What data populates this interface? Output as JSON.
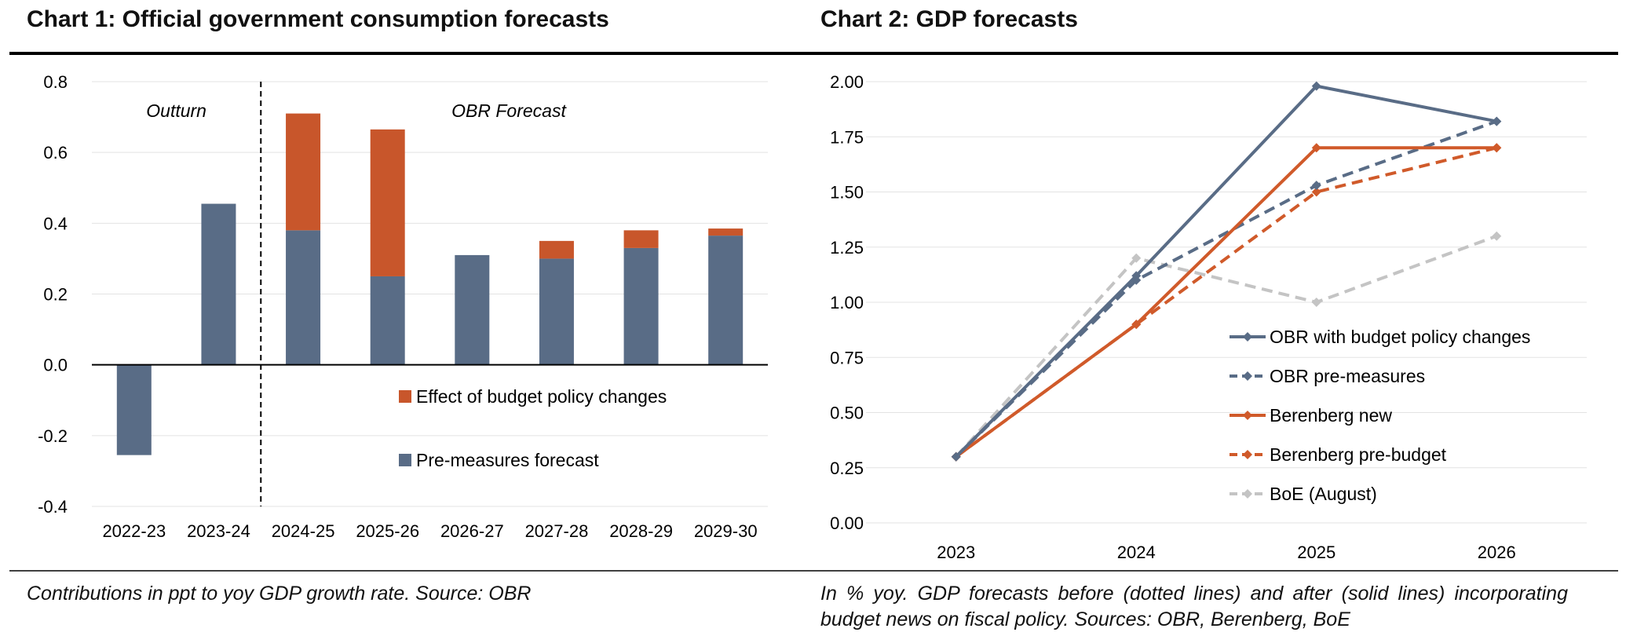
{
  "chart_data": [
    {
      "type": "bar",
      "stacked": true,
      "title": "Chart 1: Official government consumption forecasts",
      "categories": [
        "2022-23",
        "2023-24",
        "2024-25",
        "2025-26",
        "2026-27",
        "2027-28",
        "2028-29",
        "2029-30"
      ],
      "series": [
        {
          "name": "Pre-measures forecast",
          "color": "#596C86",
          "values": [
            -0.255,
            0.455,
            0.38,
            0.25,
            0.31,
            0.3,
            0.33,
            0.365
          ]
        },
        {
          "name": "Effect of budget policy changes",
          "color": "#C8562B",
          "values": [
            0,
            0,
            0.33,
            0.415,
            0,
            0.05,
            0.05,
            0.02
          ]
        }
      ],
      "ylim": [
        -0.4,
        0.8
      ],
      "yticks": [
        "-0.4",
        "-0.2",
        "0.0",
        "0.2",
        "0.4",
        "0.6",
        "0.8"
      ],
      "ytick_values": [
        -0.4,
        -0.2,
        0,
        0.2,
        0.4,
        0.6,
        0.8
      ],
      "annotations": [
        "Outturn",
        "OBR Forecast"
      ],
      "grid": true,
      "legend_position": "center-right",
      "caption": "Contributions in ppt to yoy GDP growth rate. Source: OBR"
    },
    {
      "type": "line",
      "title": "Chart 2: GDP forecasts",
      "x": [
        "2023",
        "2024",
        "2025",
        "2026"
      ],
      "ylim": [
        0,
        2
      ],
      "yticks": [
        "0.00",
        "0.25",
        "0.50",
        "0.75",
        "1.00",
        "1.25",
        "1.50",
        "1.75",
        "2.00"
      ],
      "ytick_values": [
        0,
        0.25,
        0.5,
        0.75,
        1,
        1.25,
        1.5,
        1.75,
        2
      ],
      "series": [
        {
          "name": "OBR with budget policy changes",
          "color": "#596C86",
          "style": "solid",
          "values": [
            0.3,
            1.12,
            1.98,
            1.82
          ]
        },
        {
          "name": "OBR pre-measures",
          "color": "#596C86",
          "style": "dashed",
          "values": [
            0.3,
            1.1,
            1.53,
            1.82
          ]
        },
        {
          "name": "Berenberg new",
          "color": "#D05A2A",
          "style": "solid",
          "values": [
            0.3,
            0.9,
            1.7,
            1.7
          ]
        },
        {
          "name": "Berenberg pre-budget",
          "color": "#D05A2A",
          "style": "dashed",
          "values": [
            0.3,
            0.9,
            1.5,
            1.7
          ]
        },
        {
          "name": "BoE (August)",
          "color": "#C4C4C4",
          "style": "dashed",
          "values": [
            0.3,
            1.2,
            1.0,
            1.3
          ]
        }
      ],
      "grid": true,
      "legend_position": "center-right",
      "caption": "In % yoy. GDP forecasts before (dotted lines) and after (solid lines) incorporating budget news on fiscal policy. Sources: OBR, Berenberg, BoE"
    }
  ]
}
